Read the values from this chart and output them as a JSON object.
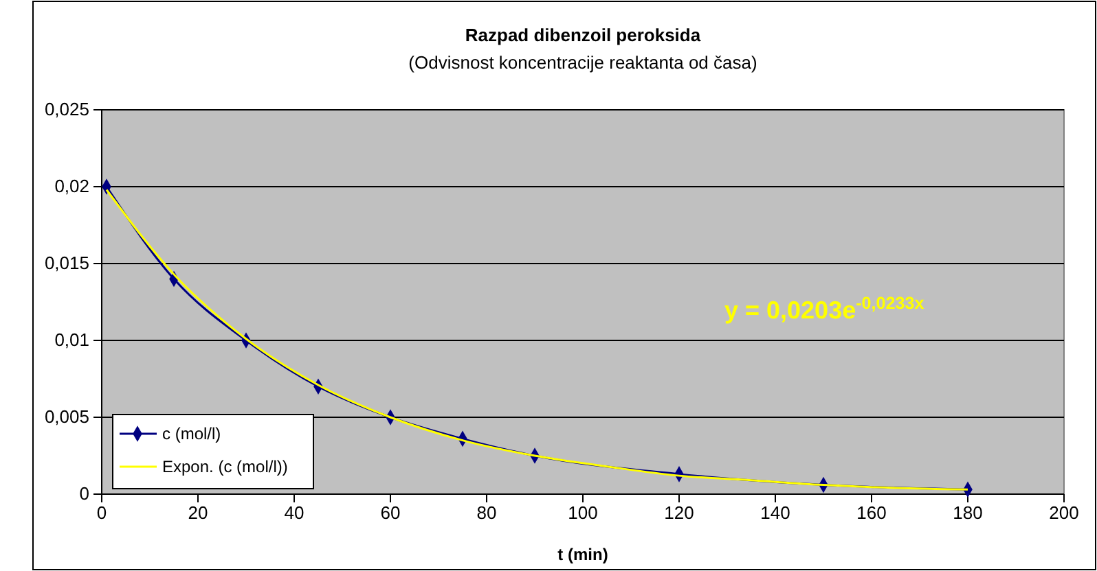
{
  "chart_data": {
    "type": "line",
    "title": "Razpad dibenzoil peroksida",
    "subtitle": "(Odvisnost koncentracije reaktanta od časa)",
    "xlabel": "t (min)",
    "xlim": [
      0,
      200
    ],
    "xticks": [
      0,
      20,
      40,
      60,
      80,
      100,
      120,
      140,
      160,
      180,
      200
    ],
    "ylim": [
      0,
      0.025
    ],
    "yticks": [
      {
        "value": 0,
        "label": "0"
      },
      {
        "value": 0.005,
        "label": "0,005"
      },
      {
        "value": 0.01,
        "label": "0,01"
      },
      {
        "value": 0.015,
        "label": "0,015"
      },
      {
        "value": 0.02,
        "label": "0,02"
      },
      {
        "value": 0.025,
        "label": "0,025"
      }
    ],
    "grid": "y",
    "legend": "bottom left",
    "annotations": [
      "y = 0,0203e$^{-0,0233x}$"
    ],
    "series": [
      {
        "name": "c  (mol/l)",
        "color": "#000080",
        "marker": "diamond",
        "x": [
          1,
          15,
          30,
          45,
          60,
          75,
          90,
          120,
          150,
          180
        ],
        "values": [
          0.02,
          0.014,
          0.01,
          0.007,
          0.005,
          0.0036,
          0.0025,
          0.0013,
          0.0006,
          0.0003
        ]
      },
      {
        "name": "Expon. (c  (mol/l))",
        "color": "#ffff00",
        "marker": "none",
        "x": [
          1,
          15,
          30,
          45,
          60,
          75,
          90,
          105,
          120,
          135,
          150,
          165,
          180
        ],
        "values": [
          0.0198,
          0.0143,
          0.0101,
          0.0071,
          0.005,
          0.0035,
          0.0025,
          0.0018,
          0.0012,
          0.0009,
          0.0006,
          0.0004,
          0.0003
        ]
      }
    ]
  }
}
